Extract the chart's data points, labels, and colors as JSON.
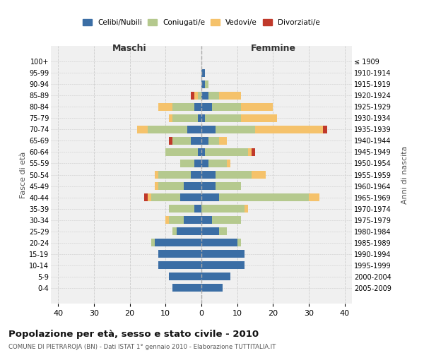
{
  "age_groups": [
    "0-4",
    "5-9",
    "10-14",
    "15-19",
    "20-24",
    "25-29",
    "30-34",
    "35-39",
    "40-44",
    "45-49",
    "50-54",
    "55-59",
    "60-64",
    "65-69",
    "70-74",
    "75-79",
    "80-84",
    "85-89",
    "90-94",
    "95-99",
    "100+"
  ],
  "birth_years": [
    "2005-2009",
    "2000-2004",
    "1995-1999",
    "1990-1994",
    "1985-1989",
    "1980-1984",
    "1975-1979",
    "1970-1974",
    "1965-1969",
    "1960-1964",
    "1955-1959",
    "1950-1954",
    "1945-1949",
    "1940-1944",
    "1935-1939",
    "1930-1934",
    "1925-1929",
    "1920-1924",
    "1915-1919",
    "1910-1914",
    "≤ 1909"
  ],
  "maschi_celibi": [
    8,
    9,
    12,
    12,
    13,
    7,
    5,
    2,
    6,
    5,
    3,
    2,
    1,
    3,
    4,
    1,
    2,
    0,
    0,
    0,
    0
  ],
  "maschi_coniugati": [
    0,
    0,
    0,
    0,
    1,
    1,
    4,
    7,
    8,
    7,
    9,
    4,
    9,
    5,
    11,
    7,
    6,
    1,
    0,
    0,
    0
  ],
  "maschi_vedovi": [
    0,
    0,
    0,
    0,
    0,
    0,
    1,
    0,
    1,
    1,
    1,
    0,
    0,
    0,
    3,
    1,
    4,
    1,
    0,
    0,
    0
  ],
  "maschi_divorziati": [
    0,
    0,
    0,
    0,
    0,
    0,
    0,
    0,
    1,
    0,
    0,
    0,
    0,
    1,
    0,
    0,
    0,
    1,
    0,
    0,
    0
  ],
  "femmine_celibi": [
    6,
    8,
    12,
    12,
    10,
    5,
    3,
    0,
    5,
    4,
    4,
    2,
    1,
    2,
    4,
    1,
    3,
    2,
    1,
    1,
    0
  ],
  "femmine_coniugati": [
    0,
    0,
    0,
    0,
    1,
    2,
    8,
    12,
    25,
    7,
    10,
    5,
    12,
    3,
    11,
    10,
    8,
    3,
    1,
    0,
    0
  ],
  "femmine_vedovi": [
    0,
    0,
    0,
    0,
    0,
    0,
    0,
    1,
    3,
    0,
    4,
    1,
    1,
    2,
    19,
    10,
    9,
    6,
    0,
    0,
    0
  ],
  "femmine_divorziati": [
    0,
    0,
    0,
    0,
    0,
    0,
    0,
    0,
    0,
    0,
    0,
    0,
    1,
    0,
    1,
    0,
    0,
    0,
    0,
    0,
    0
  ],
  "color_celibi": "#3b6ea5",
  "color_coniugati": "#b5c98e",
  "color_vedovi": "#f5c26b",
  "color_divorziati": "#c0392b",
  "title": "Popolazione per età, sesso e stato civile - 2010",
  "subtitle": "COMUNE DI PIETRAROJA (BN) - Dati ISTAT 1° gennaio 2010 - Elaborazione TUTTITALIA.IT",
  "ylabel_left": "Fasce di età",
  "ylabel_right": "Anni di nascita",
  "xlabel_left": "Maschi",
  "xlabel_right": "Femmine",
  "xlim": 42,
  "xticks": [
    -40,
    -30,
    -20,
    -10,
    0,
    10,
    20,
    30,
    40
  ],
  "xticklabels": [
    "40",
    "30",
    "20",
    "10",
    "0",
    "10",
    "20",
    "30",
    "40"
  ],
  "bg_color": "#f0f0f0",
  "grid_color": "#cccccc"
}
